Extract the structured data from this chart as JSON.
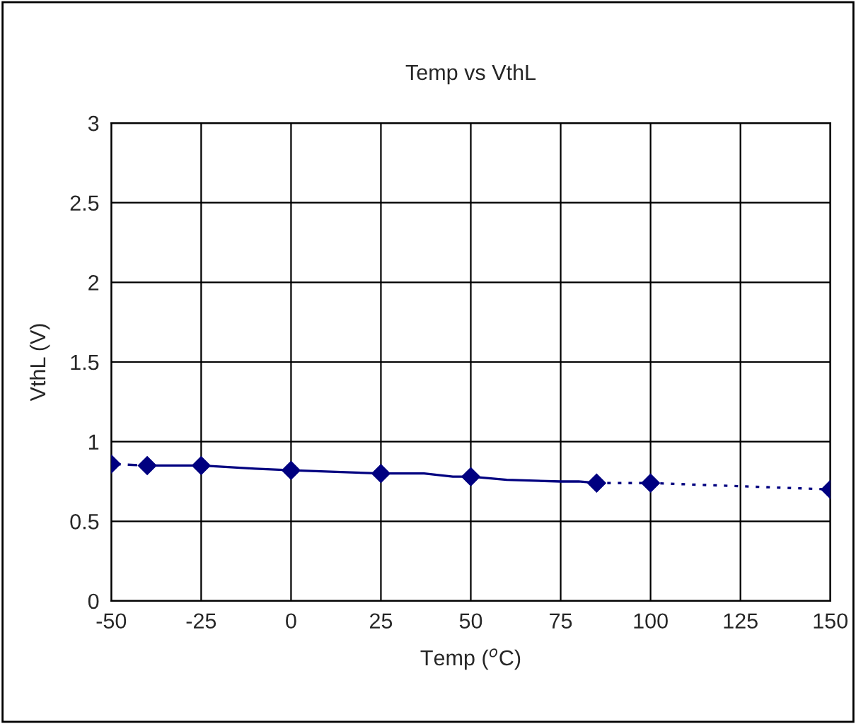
{
  "chart_data": {
    "type": "line",
    "title": "Temp vs VthL",
    "xlabel": "Temp ($^{o}$C)",
    "ylabel": "VthL (V)",
    "series": [
      {
        "color": "#000080",
        "line_style": "dashed",
        "marker": "diamond",
        "x": [
          -50,
          -40
        ],
        "values": [
          0.86,
          0.85
        ]
      },
      {
        "color": "#000080",
        "line_style": "solid",
        "marker": "none",
        "x": [
          -40,
          -25,
          -10,
          0,
          25,
          37,
          45,
          50,
          60,
          75,
          80,
          85
        ],
        "values": [
          0.85,
          0.85,
          0.83,
          0.82,
          0.8,
          0.8,
          0.78,
          0.78,
          0.76,
          0.75,
          0.75,
          0.74
        ]
      },
      {
        "type": "scatter",
        "color": "#000080",
        "marker": "diamond",
        "x": [
          -25,
          0,
          25,
          50
        ],
        "values": [
          0.85,
          0.82,
          0.8,
          0.78
        ]
      },
      {
        "color": "#000080",
        "line_style": "dotted",
        "marker": "diamond",
        "x": [
          85,
          100,
          150
        ],
        "values": [
          0.74,
          0.74,
          0.7
        ]
      }
    ],
    "xlim": [
      -50,
      150
    ],
    "xticks": [
      -50,
      -25,
      0,
      25,
      50,
      75,
      100,
      125,
      150
    ],
    "ylim": [
      0,
      3
    ],
    "yticks": [
      0,
      0.5,
      1,
      1.5,
      2,
      2.5,
      3
    ],
    "grid": true
  }
}
